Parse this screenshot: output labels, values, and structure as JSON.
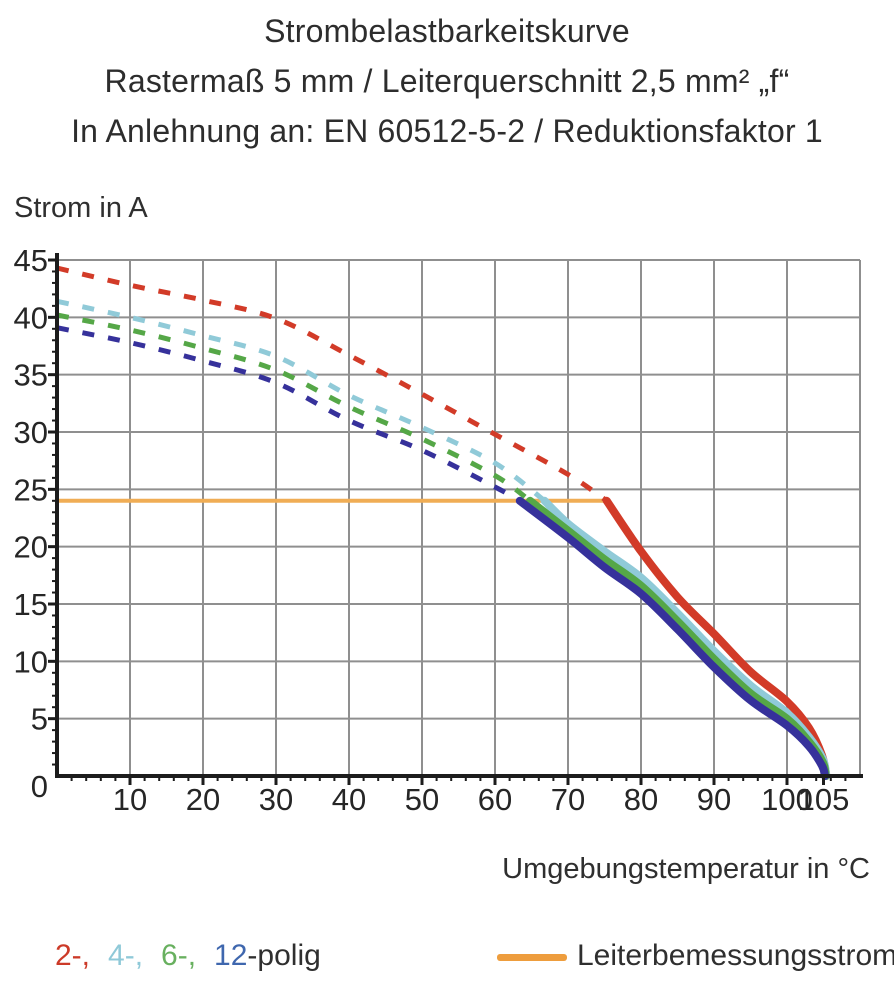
{
  "header": {
    "title_line1": "Strombelastbarkeitskurve",
    "title_line2": "Rastermaß 5 mm / Leiterquerschnitt 2,5 mm² „f“",
    "title_line3": "In Anlehnung an: EN 60512-5-2 / Reduktionsfaktor 1"
  },
  "chart_data": {
    "type": "line",
    "title": "Strombelastbarkeitskurve",
    "xlabel": "Umgebungstemperatur in °C",
    "ylabel": "Strom in A",
    "xlim": [
      0,
      110
    ],
    "ylim": [
      0,
      45
    ],
    "grid": true,
    "grid_color": "#8f8f8f",
    "axis_color": "#1c1c1c",
    "tick_label_color": "#262626",
    "x_major_ticks": [
      10,
      20,
      30,
      40,
      50,
      60,
      70,
      80,
      90,
      100,
      105
    ],
    "x_minor_step": 2,
    "y_major_ticks": [
      0,
      5,
      10,
      15,
      20,
      25,
      30,
      35,
      40,
      45
    ],
    "y_minor_step": 1,
    "rated_current": {
      "label": "Leiterbemessungsstrom",
      "value_a": 24,
      "x_start": 0,
      "x_end": 75.3,
      "color": "#f0ad55"
    },
    "series": [
      {
        "name": "2-polig",
        "color": "#d23b28",
        "dashed": [
          [
            0,
            44.3
          ],
          [
            10,
            42.8
          ],
          [
            20,
            41.5
          ],
          [
            30,
            39.9
          ],
          [
            40,
            36.7
          ],
          [
            50,
            33.3
          ],
          [
            60,
            29.8
          ],
          [
            70,
            26.3
          ],
          [
            75.3,
            24
          ]
        ],
        "solid": [
          [
            75.3,
            24
          ],
          [
            80,
            19.6
          ],
          [
            85,
            15.6
          ],
          [
            90,
            12.4
          ],
          [
            95,
            9.1
          ],
          [
            100,
            6.5
          ],
          [
            103,
            4.2
          ],
          [
            104.8,
            1.8
          ],
          [
            105.4,
            0
          ]
        ]
      },
      {
        "name": "4-polig",
        "color": "#90cad8",
        "dashed": [
          [
            0,
            41.4
          ],
          [
            10,
            40.0
          ],
          [
            20,
            38.4
          ],
          [
            30,
            36.6
          ],
          [
            40,
            33.2
          ],
          [
            50,
            30.4
          ],
          [
            60,
            27.3
          ],
          [
            66.8,
            24
          ]
        ],
        "solid": [
          [
            66.8,
            24
          ],
          [
            70,
            22.0
          ],
          [
            75,
            19.6
          ],
          [
            80,
            17.3
          ],
          [
            85,
            14.2
          ],
          [
            90,
            10.9
          ],
          [
            95,
            7.9
          ],
          [
            100,
            5.5
          ],
          [
            103,
            3.4
          ],
          [
            104.9,
            1.5
          ],
          [
            105.4,
            0
          ]
        ]
      },
      {
        "name": "6-polig",
        "color": "#55a747",
        "dashed": [
          [
            0,
            40.2
          ],
          [
            10,
            38.9
          ],
          [
            20,
            37.3
          ],
          [
            30,
            35.4
          ],
          [
            40,
            32.2
          ],
          [
            50,
            29.4
          ],
          [
            60,
            26.2
          ],
          [
            64.8,
            24
          ]
        ],
        "solid": [
          [
            64.8,
            24
          ],
          [
            70,
            21.4
          ],
          [
            75,
            18.9
          ],
          [
            80,
            16.6
          ],
          [
            85,
            13.5
          ],
          [
            90,
            10.2
          ],
          [
            95,
            7.2
          ],
          [
            100,
            5.0
          ],
          [
            103,
            3.0
          ],
          [
            104.9,
            1.2
          ],
          [
            105.3,
            0
          ]
        ]
      },
      {
        "name": "12-polig",
        "color": "#36319b",
        "dashed": [
          [
            0,
            39.1
          ],
          [
            10,
            37.8
          ],
          [
            20,
            36.2
          ],
          [
            30,
            34.3
          ],
          [
            40,
            31.0
          ],
          [
            50,
            28.4
          ],
          [
            60,
            25.2
          ],
          [
            63.4,
            24
          ]
        ],
        "solid": [
          [
            63.4,
            24
          ],
          [
            70,
            20.8
          ],
          [
            75,
            18.2
          ],
          [
            80,
            15.9
          ],
          [
            85,
            12.8
          ],
          [
            90,
            9.5
          ],
          [
            95,
            6.6
          ],
          [
            100,
            4.4
          ],
          [
            103,
            2.6
          ],
          [
            104.8,
            0.9
          ],
          [
            105.2,
            0
          ]
        ]
      }
    ]
  },
  "legend": {
    "pole_items": [
      {
        "label": "2-,",
        "color": "#cc3a28"
      },
      {
        "label": "4-,",
        "color": "#8fc9d8"
      },
      {
        "label": "6-,",
        "color": "#68b05f"
      },
      {
        "label": "12",
        "color": "#3f67ae"
      }
    ],
    "pole_suffix": "-polig",
    "rated_label": "Leiterbemessungsstrom",
    "rated_swatch_color": "#ee9d3d"
  }
}
